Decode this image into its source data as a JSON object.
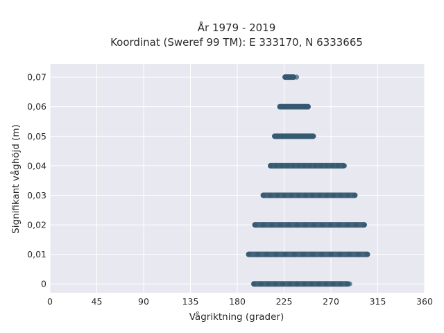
{
  "chart_data": {
    "type": "scatter",
    "title": "År 1979 - 2019",
    "subtitle": "Koordinat (Sweref 99 TM): E 333170, N 6333665",
    "xlabel": "Vågriktning (grader)",
    "ylabel": "Signifikant våghöjd (m)",
    "xlim": [
      0,
      360
    ],
    "ylim": [
      -0.003,
      0.0745
    ],
    "x_ticks": [
      0,
      45,
      90,
      135,
      180,
      225,
      270,
      315,
      360
    ],
    "x_tick_labels": [
      "0",
      "45",
      "90",
      "135",
      "180",
      "225",
      "270",
      "315",
      "360"
    ],
    "y_ticks": [
      0,
      0.01,
      0.02,
      0.03,
      0.04,
      0.05,
      0.06,
      0.07
    ],
    "y_tick_labels": [
      "0",
      "0,01",
      "0,02",
      "0,03",
      "0,04",
      "0,05",
      "0,06",
      "0,07"
    ],
    "grid": true,
    "marker_color": "#34586f",
    "plot_background": "#e8e8f1",
    "bands": [
      {
        "y": 0.0,
        "x_min": 196,
        "x_max": 286,
        "outliers": [
          288
        ]
      },
      {
        "y": 0.01,
        "x_min": 191,
        "x_max": 305,
        "outliers": []
      },
      {
        "y": 0.02,
        "x_min": 197,
        "x_max": 302,
        "outliers": []
      },
      {
        "y": 0.03,
        "x_min": 205,
        "x_max": 293,
        "outliers": []
      },
      {
        "y": 0.04,
        "x_min": 212,
        "x_max": 282,
        "outliers": [
          283
        ]
      },
      {
        "y": 0.05,
        "x_min": 216,
        "x_max": 253,
        "outliers": []
      },
      {
        "y": 0.06,
        "x_min": 221,
        "x_max": 248,
        "outliers": []
      },
      {
        "y": 0.07,
        "x_min": 226,
        "x_max": 234,
        "outliers": [
          237
        ]
      }
    ]
  }
}
